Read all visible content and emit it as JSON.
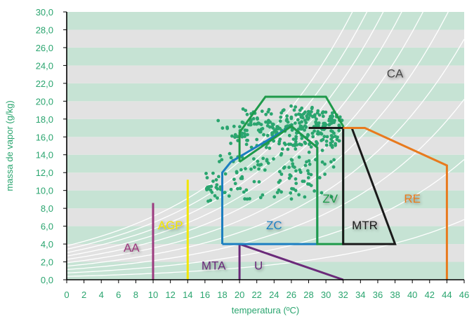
{
  "chart_data": {
    "type": "scatter",
    "xlabel": "temperatura (ºC)",
    "ylabel": "massa de vapor (g/kg)",
    "xlim": [
      0,
      46
    ],
    "ylim": [
      0,
      30
    ],
    "x_ticks": [
      "0",
      "2",
      "4",
      "6",
      "8",
      "10",
      "12",
      "14",
      "16",
      "18",
      "20",
      "22",
      "24",
      "26",
      "28",
      "30",
      "32",
      "34",
      "36",
      "38",
      "40",
      "42",
      "44",
      "46"
    ],
    "y_ticks": [
      "0,0",
      "2,0",
      "4,0",
      "6,0",
      "8,0",
      "10,0",
      "12,0",
      "14,0",
      "16,0",
      "18,0",
      "20,0",
      "22,0",
      "24,0",
      "26,0",
      "28,0",
      "30,0"
    ],
    "band_colors": [
      "#c6e3d4",
      "#e2e2e2"
    ],
    "grid": false,
    "rh_curves_color": "#ffffff",
    "zones": [
      {
        "label": "AA",
        "color": "#9c3a7f",
        "label_pos": [
          7.5,
          3.5
        ],
        "path": [
          [
            10,
            0
          ],
          [
            10,
            8.6
          ]
        ]
      },
      {
        "label": "AGP",
        "color": "#f2e600",
        "label_pos": [
          12,
          6
        ],
        "path": [
          [
            14,
            0
          ],
          [
            14,
            11.2
          ]
        ]
      },
      {
        "label": "MTA",
        "color": "#6b2a7a",
        "label_pos": [
          17,
          1.5
        ],
        "path": [
          [
            20,
            0
          ],
          [
            20,
            4
          ]
        ]
      },
      {
        "label": "U",
        "color": "#6b2a7a",
        "label_pos": [
          22.2,
          1.5
        ],
        "path": [
          [
            20,
            4
          ],
          [
            32,
            0
          ]
        ]
      },
      {
        "label": "ZC",
        "color": "#1c7fc1",
        "label_pos": [
          24,
          6
        ],
        "path": [
          [
            18,
            4
          ],
          [
            18,
            12
          ],
          [
            19,
            13.2
          ],
          [
            26,
            17.2
          ],
          [
            29,
            14.8
          ],
          [
            29,
            4
          ],
          [
            18,
            4
          ]
        ]
      },
      {
        "label": "ZV",
        "color": "#1f9a4a",
        "label_pos": [
          30.5,
          9
        ],
        "path": [
          [
            20,
            13.2
          ],
          [
            20,
            16.5
          ],
          [
            23,
            20.5
          ],
          [
            30,
            20.5
          ],
          [
            32,
            17.2
          ],
          [
            32,
            4
          ],
          [
            29,
            4
          ],
          [
            29,
            14.8
          ],
          [
            26,
            17.2
          ],
          [
            20,
            13.2
          ]
        ]
      },
      {
        "label": "MTR",
        "color": "#1a1a1a",
        "label_pos": [
          34.5,
          6
        ],
        "path": [
          [
            28,
            17
          ],
          [
            33,
            17
          ],
          [
            38,
            4
          ],
          [
            32,
            4
          ],
          [
            32,
            17
          ]
        ]
      },
      {
        "label": "RE",
        "color": "#e87a1e",
        "label_pos": [
          40,
          9
        ],
        "path": [
          [
            32,
            17
          ],
          [
            34.5,
            17
          ],
          [
            44,
            12.8
          ],
          [
            44,
            0
          ]
        ]
      },
      {
        "label": "CA",
        "color": "#4a4a4a",
        "label_pos": [
          38,
          23
        ],
        "path": []
      }
    ],
    "points_color": "#2aa56f"
  }
}
